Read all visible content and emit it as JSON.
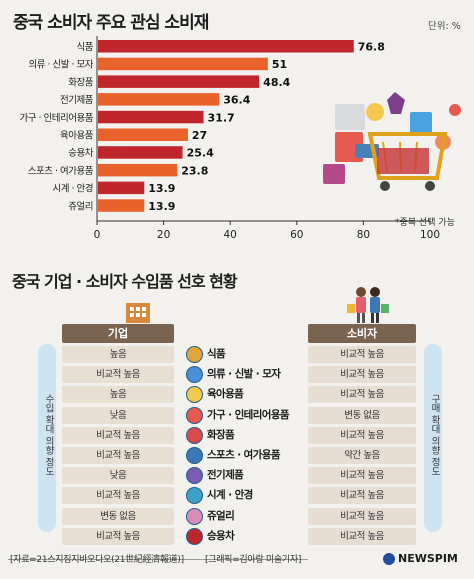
{
  "chart_data": {
    "type": "bar",
    "orientation": "horizontal",
    "title": "중국 소비자 주요 관심 소비재",
    "unit_label": "단위: %",
    "categories": [
      "식품",
      "의류 · 신발 · 모자",
      "화장품",
      "전기제품",
      "가구 · 인테리어용품",
      "육아용품",
      "승용차",
      "스포츠 · 여가용품",
      "시계 · 안경",
      "쥬얼리"
    ],
    "values": [
      76.8,
      51,
      48.4,
      36.4,
      31.7,
      27,
      25.4,
      23.8,
      13.9,
      13.9
    ],
    "value_labels": [
      "76.8",
      "51",
      "48.4",
      "36.4",
      "31.7",
      "27",
      "25.4",
      "23.8",
      "13.9",
      "13.9"
    ],
    "bar_colors": [
      "#c0272d",
      "#e8622c",
      "#c0272d",
      "#e8622c",
      "#c0272d",
      "#e8622c",
      "#c0272d",
      "#e8622c",
      "#c0272d",
      "#e8622c"
    ],
    "xlim": [
      0,
      100
    ],
    "xticks": [
      "0",
      "20",
      "40",
      "60",
      "80",
      "100"
    ],
    "note": "*중복 선택 가능"
  },
  "section2": {
    "title": "중국 기업 · 소비자 수입품 선호 현황",
    "left_header": "기업",
    "right_header": "소비자",
    "left_side_label": "수입 확대 의향 정도",
    "right_side_label": "구매 확대 의향 정도",
    "header_color": "#7a6450",
    "rows": [
      {
        "category": "식품",
        "enterprise": "높음",
        "consumer": "비교적 높음"
      },
      {
        "category": "의류 · 신발 · 모자",
        "enterprise": "비교적 높음",
        "consumer": "비교적 높음"
      },
      {
        "category": "육아용품",
        "enterprise": "높음",
        "consumer": "비교적 높음"
      },
      {
        "category": "가구 · 인테리어용품",
        "enterprise": "낮음",
        "consumer": "변동 없음"
      },
      {
        "category": "화장품",
        "enterprise": "비교적 높음",
        "consumer": "비교적 높음"
      },
      {
        "category": "스포츠 · 여가용품",
        "enterprise": "비교적 높음",
        "consumer": "약간 높음"
      },
      {
        "category": "전기제품",
        "enterprise": "낮음",
        "consumer": "비교적 높음"
      },
      {
        "category": "시계 · 안경",
        "enterprise": "비교적 높음",
        "consumer": "비교적 높음"
      },
      {
        "category": "쥬얼리",
        "enterprise": "변동 없음",
        "consumer": "비교적 높음"
      },
      {
        "category": "승용차",
        "enterprise": "비교적 높음",
        "consumer": "비교적 높음"
      }
    ]
  },
  "footer": {
    "source": "[자료=21스지징지바오다오(21世紀經濟報道)]",
    "credit": "[그래픽=김아랑 미술기자]",
    "logo": "NEWSPIM"
  }
}
